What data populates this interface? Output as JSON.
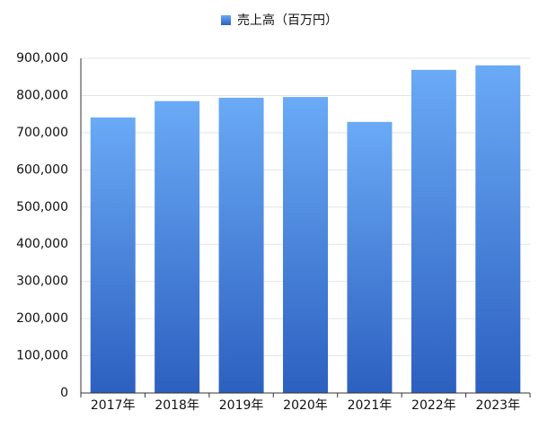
{
  "chart_data": {
    "type": "bar",
    "categories": [
      "2017年",
      "2018年",
      "2019年",
      "2020年",
      "2021年",
      "2022年",
      "2023年"
    ],
    "series": [
      {
        "name": "売上高（百万円）",
        "color": "#2c60c0",
        "values": [
          741000,
          785000,
          794000,
          796000,
          729000,
          869000,
          881000
        ]
      }
    ],
    "ylim": [
      0,
      900000
    ],
    "yticks": [
      0,
      {
        "value": 100000,
        "label": "100,000"
      },
      {
        "value": 200000,
        "label": "200,000"
      },
      {
        "value": 300000,
        "label": "300,000"
      },
      {
        "value": 400000,
        "label": "400,000"
      },
      {
        "value": 500000,
        "label": "500,000"
      },
      {
        "value": 600000,
        "label": "600,000"
      },
      {
        "value": 700000,
        "label": "700,000"
      },
      {
        "value": 800000,
        "label": "800,000"
      },
      {
        "value": 900000,
        "label": "900,000"
      }
    ],
    "grid": true,
    "legend": "top"
  }
}
